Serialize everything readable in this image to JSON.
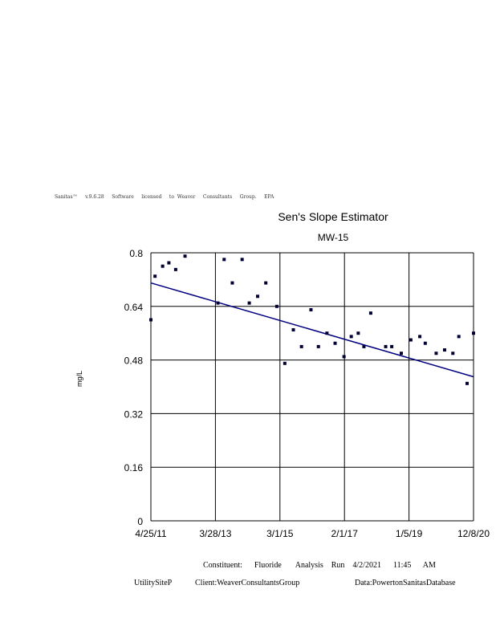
{
  "banner": "Sanitas™     v.9.6.28     Software     licensed     to  Weaver     Consultants     Group.     EPA",
  "footer": {
    "line1": "Constituent:      Fluoride       Analysis    Run    4/2/2021      11:45      AM",
    "site": "UtilitySiteP",
    "client": "Client:WeaverConsultantsGroup",
    "database": "Data:PowertonSanitasDatabase"
  },
  "chart_data": {
    "type": "scatter",
    "title": "Sen's Slope Estimator",
    "subtitle": "MW-15",
    "xlabel": "",
    "ylabel": "mg/L",
    "xlim": [
      "2011-04-25",
      "2020-12-08"
    ],
    "ylim": [
      0,
      0.8
    ],
    "xticks": [
      "4/25/11",
      "3/28/13",
      "3/1/15",
      "2/1/17",
      "1/5/19",
      "12/8/20"
    ],
    "yticks": [
      "0",
      "0.16",
      "0.32",
      "0.48",
      "0.64",
      "0.8"
    ],
    "grid": true,
    "points": [
      {
        "x": "2011-04-25",
        "y": 0.6
      },
      {
        "x": "2011-06-09",
        "y": 0.73
      },
      {
        "x": "2011-08-31",
        "y": 0.76
      },
      {
        "x": "2011-11-07",
        "y": 0.77
      },
      {
        "x": "2012-01-20",
        "y": 0.75
      },
      {
        "x": "2012-05-01",
        "y": 0.79
      },
      {
        "x": "2013-04-24",
        "y": 0.65
      },
      {
        "x": "2013-07-01",
        "y": 0.78
      },
      {
        "x": "2013-09-28",
        "y": 0.71
      },
      {
        "x": "2014-01-13",
        "y": 0.78
      },
      {
        "x": "2014-04-01",
        "y": 0.65
      },
      {
        "x": "2014-07-01",
        "y": 0.67
      },
      {
        "x": "2014-09-28",
        "y": 0.71
      },
      {
        "x": "2015-01-26",
        "y": 0.64
      },
      {
        "x": "2015-04-23",
        "y": 0.47
      },
      {
        "x": "2015-07-25",
        "y": 0.57
      },
      {
        "x": "2015-10-22",
        "y": 0.52
      },
      {
        "x": "2016-02-02",
        "y": 0.63
      },
      {
        "x": "2016-04-23",
        "y": 0.52
      },
      {
        "x": "2016-07-25",
        "y": 0.56
      },
      {
        "x": "2016-10-22",
        "y": 0.53
      },
      {
        "x": "2017-01-27",
        "y": 0.49
      },
      {
        "x": "2017-04-16",
        "y": 0.55
      },
      {
        "x": "2017-07-01",
        "y": 0.56
      },
      {
        "x": "2017-09-01",
        "y": 0.52
      },
      {
        "x": "2017-11-14",
        "y": 0.62
      },
      {
        "x": "2018-04-26",
        "y": 0.52
      },
      {
        "x": "2018-07-01",
        "y": 0.52
      },
      {
        "x": "2018-10-13",
        "y": 0.5
      },
      {
        "x": "2019-01-25",
        "y": 0.54
      },
      {
        "x": "2019-05-03",
        "y": 0.55
      },
      {
        "x": "2019-07-01",
        "y": 0.53
      },
      {
        "x": "2019-10-28",
        "y": 0.5
      },
      {
        "x": "2020-01-28",
        "y": 0.51
      },
      {
        "x": "2020-04-27",
        "y": 0.5
      },
      {
        "x": "2020-07-01",
        "y": 0.55
      },
      {
        "x": "2020-09-29",
        "y": 0.41
      },
      {
        "x": "2020-12-08",
        "y": 0.56
      }
    ],
    "trend_line": {
      "x": [
        "2011-04-25",
        "2020-12-08"
      ],
      "y": [
        0.71,
        0.43
      ]
    },
    "colors": {
      "points": "#000033",
      "trend": "#000080",
      "grid": "#000000"
    }
  }
}
